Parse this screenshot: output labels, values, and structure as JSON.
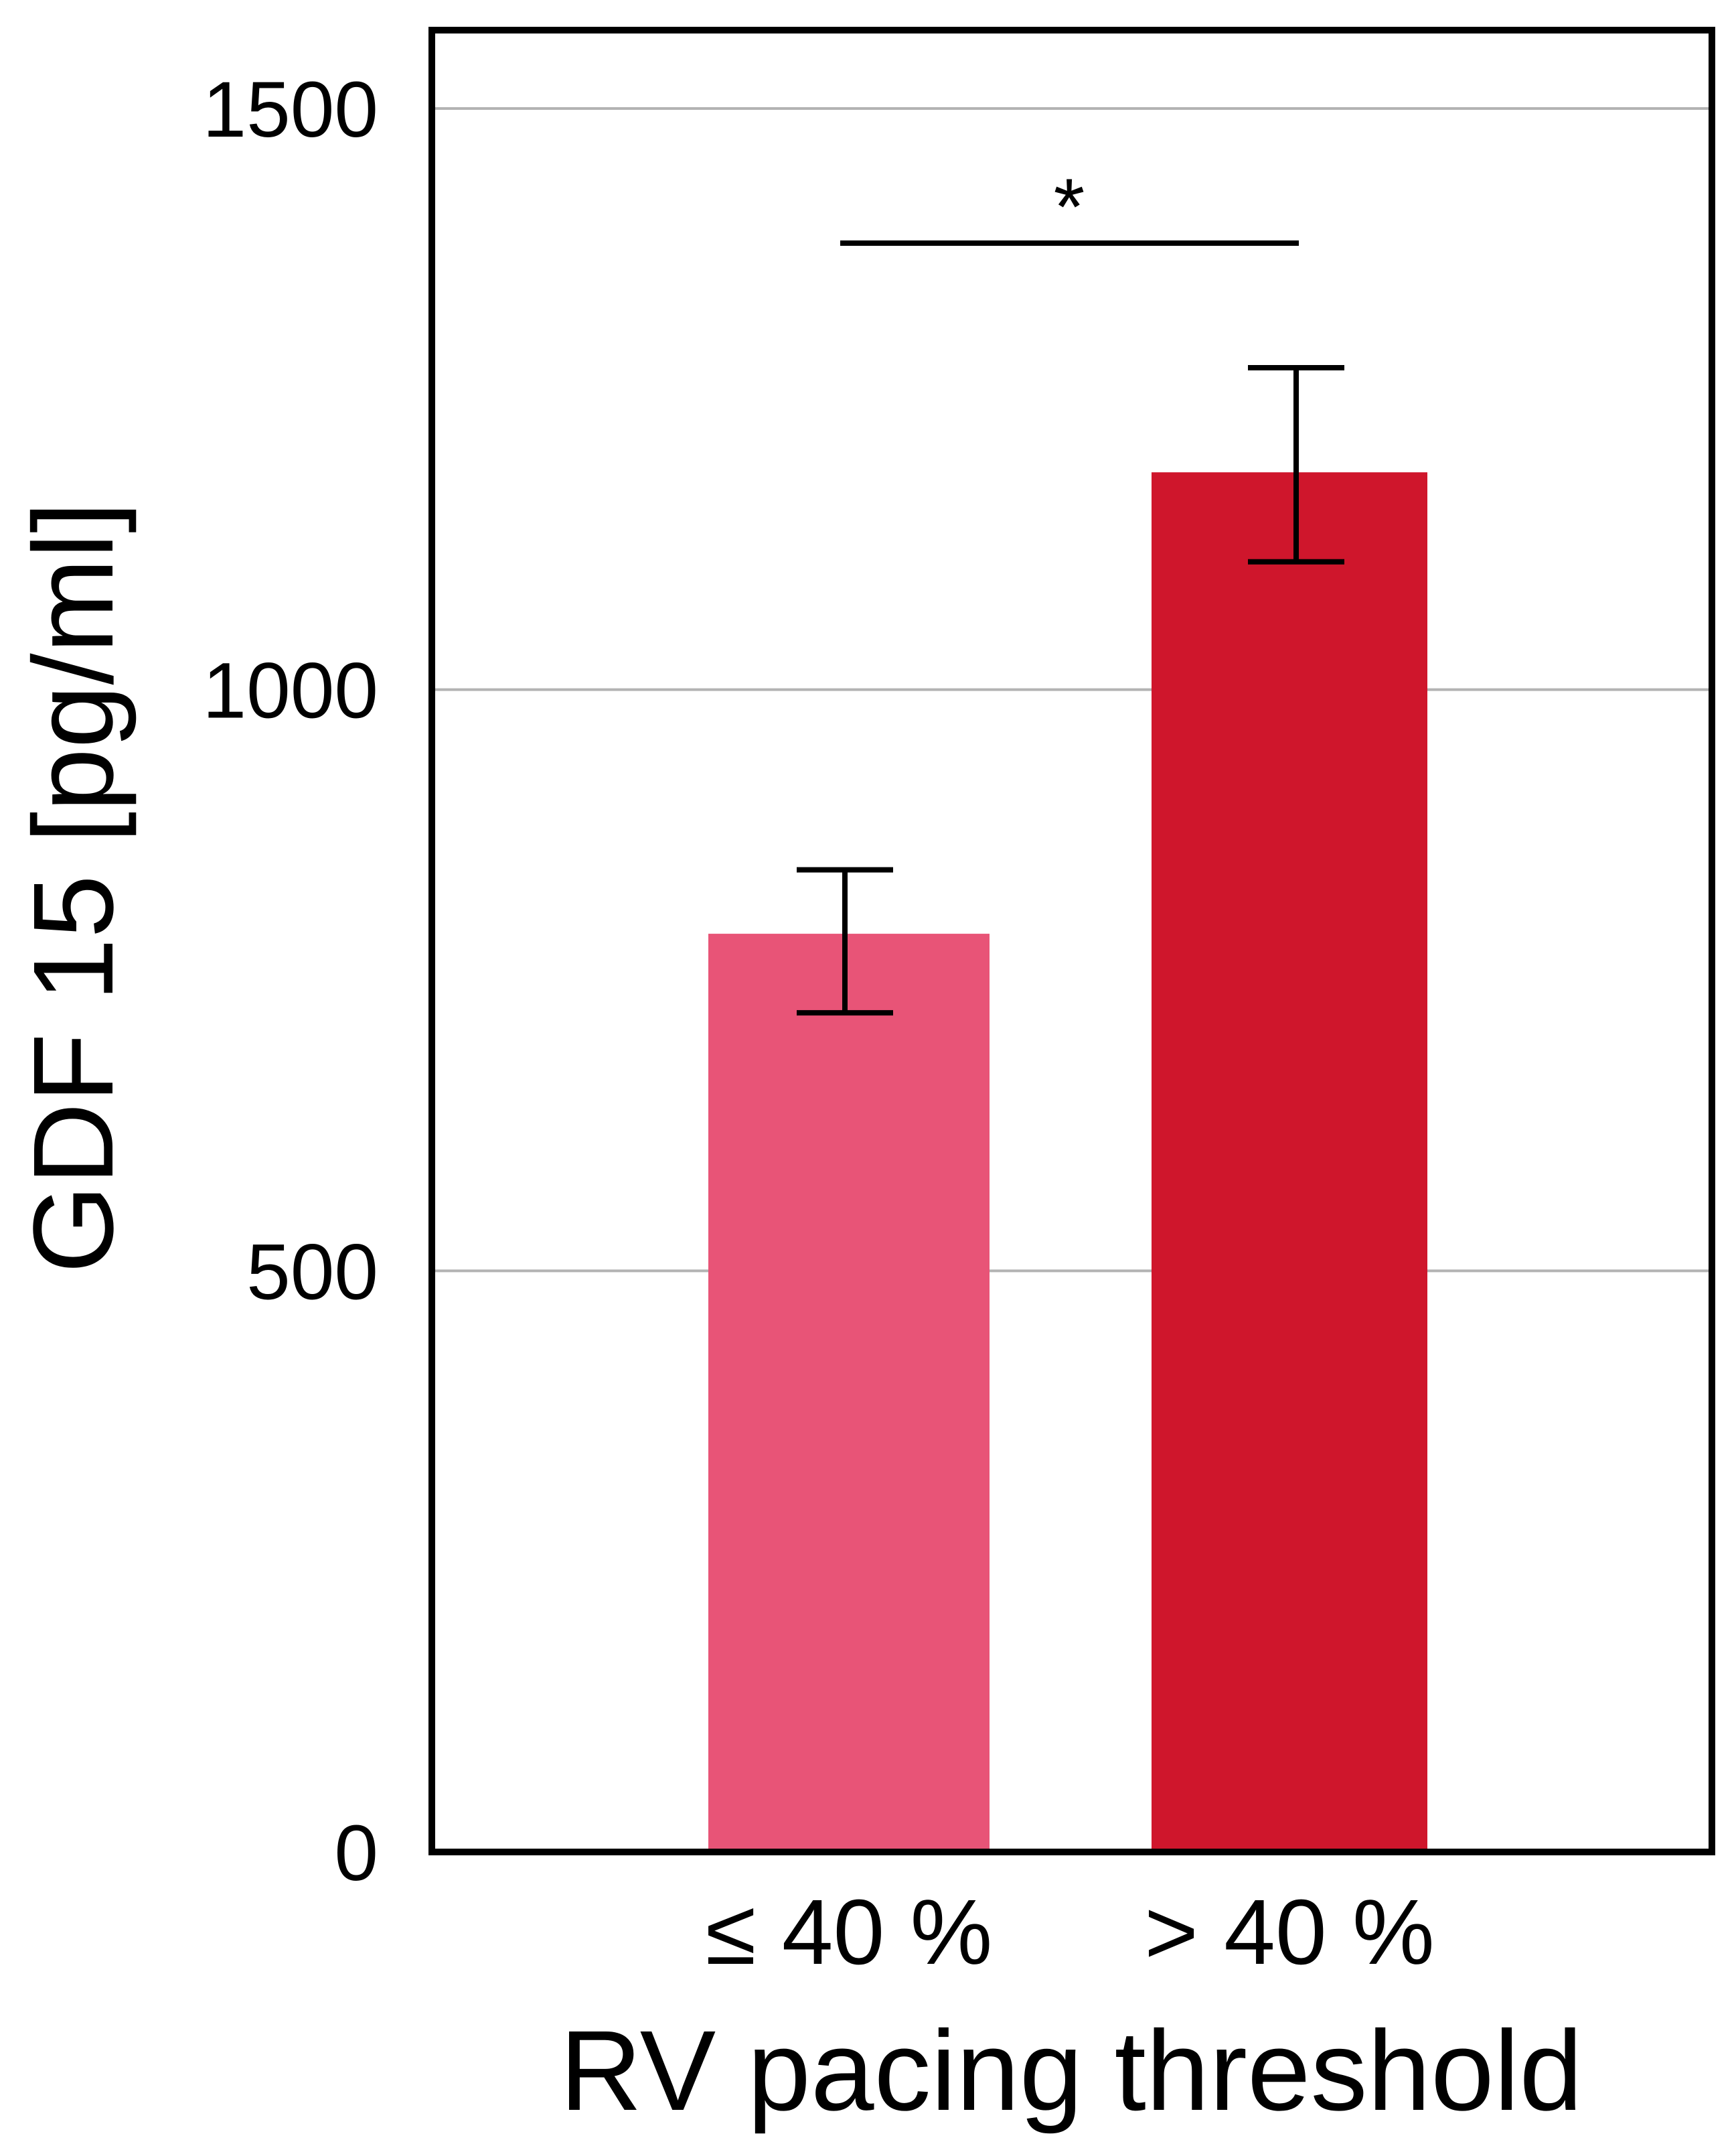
{
  "chart_data": {
    "type": "bar",
    "categories": [
      "≤ 40 %",
      "> 40 %"
    ],
    "values": [
      790,
      1187
    ],
    "error": [
      {
        "lower": 722,
        "upper": 845
      },
      {
        "lower": 1110,
        "upper": 1277
      }
    ],
    "colors": [
      "#e85477",
      "#cf162c"
    ],
    "xlabel": "RV pacing threshold",
    "ylabel": "GDF 15 [pg/ml]",
    "ylim": [
      0,
      1550
    ],
    "yticks": [
      0,
      500,
      1000,
      1500
    ],
    "grid": true,
    "significance": {
      "between": [
        0,
        1
      ],
      "label": "*"
    }
  }
}
